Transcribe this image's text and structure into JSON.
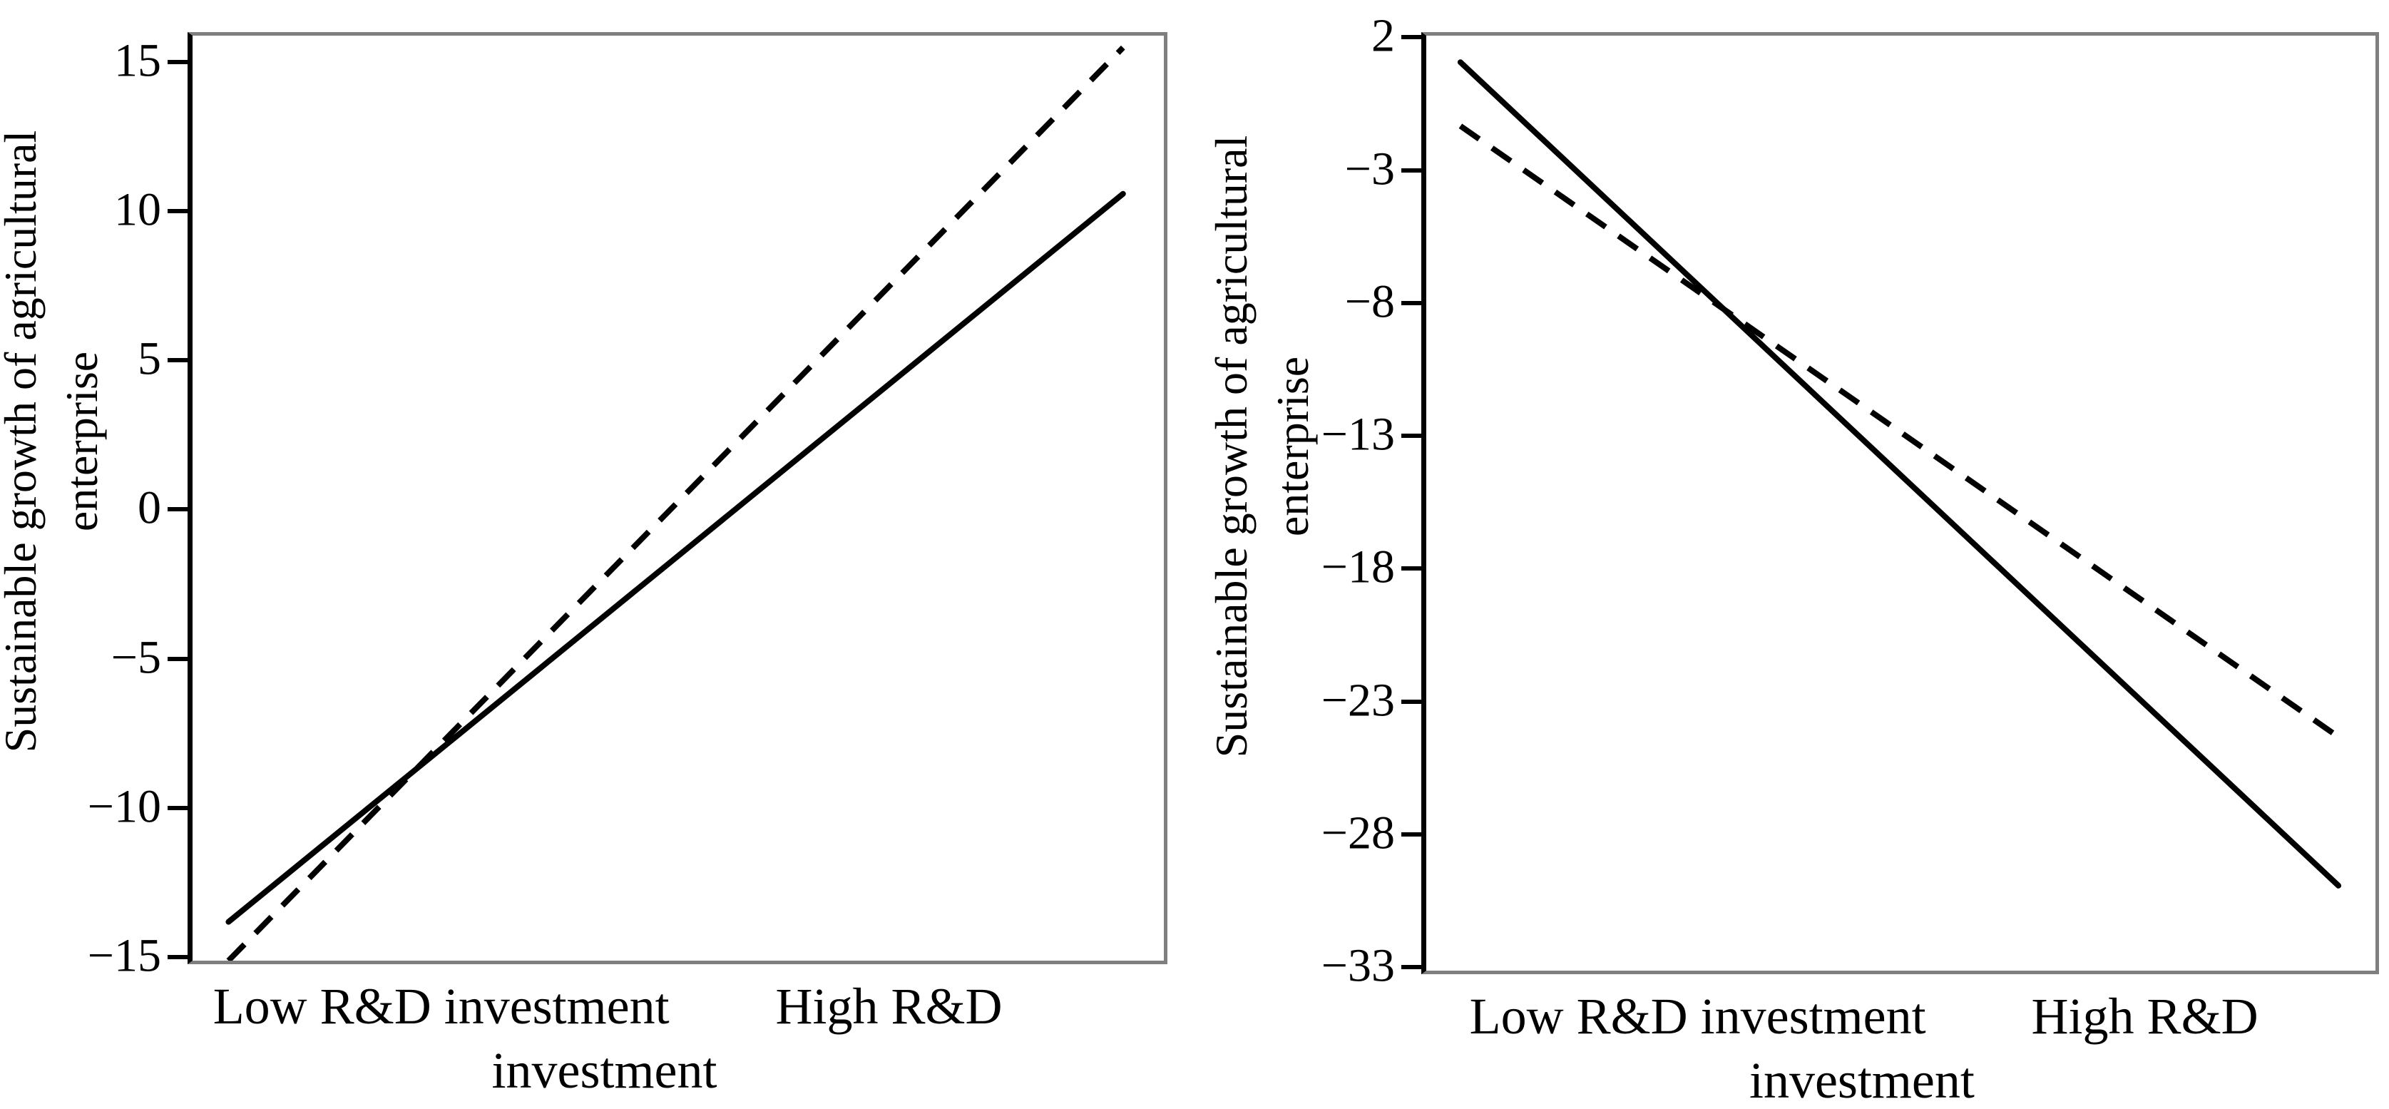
{
  "figure": {
    "background": "#ffffff",
    "text_color": "#000000",
    "frame_color": "#7f7f7f",
    "axis_color": "#000000",
    "line_color": "#000000",
    "panel_count": 2
  },
  "chart_data": [
    {
      "type": "line",
      "panel": "left",
      "title": "",
      "xlabel": "",
      "ylabel": "Sustainable growth of agricultural enterprise",
      "ylabel_lines": [
        "Sustainable growth of agricultural",
        "enterprise"
      ],
      "categories": [
        "Low R&D investment",
        "High R&D investment"
      ],
      "x_tick_display": {
        "line1_left": "Low R&D investment",
        "line1_right": "High R&D",
        "line2": "investment"
      },
      "ylim": [
        -15,
        16
      ],
      "yticks": [
        15,
        10,
        5,
        0,
        -5,
        -10,
        -15
      ],
      "ytick_labels": [
        "15",
        "10",
        "5",
        "0",
        "−5",
        "−10",
        "−15"
      ],
      "grid": false,
      "legend": "none",
      "series": [
        {
          "name": "solid",
          "line_style": "solid",
          "values": [
            -13.7,
            10.7
          ]
        },
        {
          "name": "dashed",
          "line_style": "dashed",
          "values": [
            -15.0,
            15.6
          ]
        }
      ]
    },
    {
      "type": "line",
      "panel": "right",
      "title": "",
      "xlabel": "",
      "ylabel": "Sustainable growth of agricultural enterprise",
      "ylabel_lines": [
        "Sustainable growth of agricultural",
        "enterprise"
      ],
      "categories": [
        "Low R&D investment",
        "High R&D investment"
      ],
      "x_tick_display": {
        "line1_left": "Low R&D investment",
        "line1_right": "High R&D",
        "line2": "investment"
      },
      "ylim": [
        -33,
        2.2
      ],
      "yticks": [
        2,
        -3,
        -8,
        -13,
        -18,
        -23,
        -28,
        -33
      ],
      "ytick_labels": [
        "2",
        "−3",
        "−8",
        "−13",
        "−18",
        "−23",
        "−28",
        "−33"
      ],
      "grid": false,
      "legend": "none",
      "series": [
        {
          "name": "solid",
          "line_style": "solid",
          "values": [
            1.2,
            -29.8
          ]
        },
        {
          "name": "dashed",
          "line_style": "dashed",
          "values": [
            -1.2,
            -24.2
          ]
        }
      ]
    }
  ]
}
